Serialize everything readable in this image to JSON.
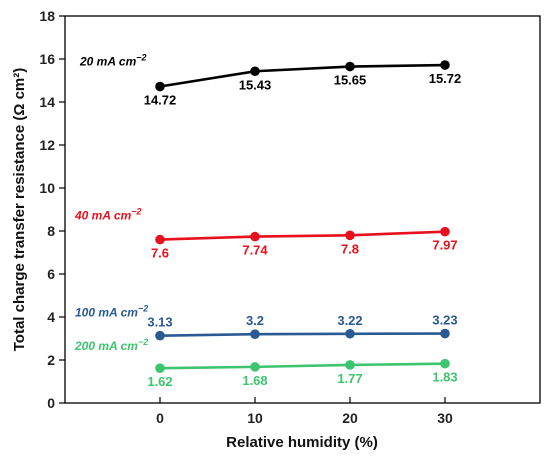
{
  "chart_data": {
    "type": "line",
    "x": [
      0,
      10,
      20,
      30
    ],
    "xlabel": "Relative humidity (%)",
    "ylabel": "Total charge transfer resistance (Ω cm²)",
    "xlim": [
      -10,
      40
    ],
    "ylim": [
      0,
      18
    ],
    "xticks": [
      "0",
      "10",
      "20",
      "30"
    ],
    "yticks": [
      "0",
      "2",
      "4",
      "6",
      "8",
      "10",
      "12",
      "14",
      "16",
      "18"
    ],
    "grid": false,
    "legend": "none",
    "series": [
      {
        "name_base": "20 mA cm",
        "name_sup": "−2",
        "color": "#000000",
        "values": [
          14.72,
          15.43,
          15.65,
          15.72
        ],
        "labels": [
          "14.72",
          "15.43",
          "15.65",
          "15.72"
        ],
        "label_position": "below"
      },
      {
        "name_base": "40 mA cm",
        "name_sup": "−2",
        "color": "#e8101c",
        "values": [
          7.6,
          7.74,
          7.8,
          7.97
        ],
        "labels": [
          "7.6",
          "7.74",
          "7.8",
          "7.97"
        ],
        "label_position": "below"
      },
      {
        "name_base": "100 mA cm",
        "name_sup": "−2",
        "color": "#2a5a94",
        "values": [
          3.13,
          3.2,
          3.22,
          3.23
        ],
        "labels": [
          "3.13",
          "3.2",
          "3.22",
          "3.23"
        ],
        "label_position": "above"
      },
      {
        "name_base": "200 mA cm",
        "name_sup": "−2",
        "color": "#3cc46e",
        "values": [
          1.62,
          1.68,
          1.77,
          1.83
        ],
        "labels": [
          "1.62",
          "1.68",
          "1.77",
          "1.83"
        ],
        "label_position": "below"
      }
    ]
  }
}
